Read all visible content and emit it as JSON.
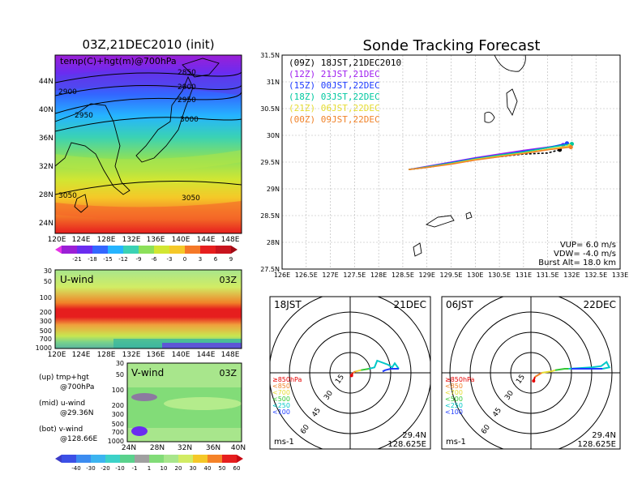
{
  "init_panel": {
    "title": "03Z,21DEC2010 (init)",
    "subtitle": "temp(C)+hgt(m)@700hPa",
    "lat_ticks": [
      "44N",
      "40N",
      "36N",
      "32N",
      "28N",
      "24N"
    ],
    "lon_ticks": [
      "120E",
      "124E",
      "128E",
      "132E",
      "136E",
      "140E",
      "144E",
      "148E"
    ],
    "contours": [
      "2850",
      "2900",
      "2900",
      "2950",
      "2950",
      "3000",
      "3050",
      "3050"
    ],
    "colorbar_ticks": [
      "-21",
      "-18",
      "-15",
      "-12",
      "-9",
      "-6",
      "-3",
      "0",
      "3",
      "6",
      "9"
    ]
  },
  "uwind_panel": {
    "label": "U-wind",
    "time": "03Z",
    "levels": [
      "30",
      "50",
      "100",
      "200",
      "300",
      "500",
      "700",
      "1000"
    ],
    "lon_ticks": [
      "120E",
      "124E",
      "128E",
      "132E",
      "136E",
      "140E",
      "144E",
      "148E"
    ]
  },
  "vwind_panel": {
    "label": "V-wind",
    "time": "03Z",
    "levels": [
      "30",
      "50",
      "100",
      "200",
      "300",
      "500",
      "700",
      "1000"
    ],
    "lat_ticks": [
      "24N",
      "28N",
      "32N",
      "36N",
      "40N"
    ]
  },
  "wind_colorbar_ticks": [
    "-40",
    "-30",
    "-20",
    "-10",
    "-1",
    "1",
    "10",
    "20",
    "30",
    "40",
    "50",
    "60"
  ],
  "legend_notes": [
    {
      "a": "(up) tmp+hgt",
      "b": "@700hPa"
    },
    {
      "a": "(mid) u-wind",
      "b": "@29.36N"
    },
    {
      "a": "(bot) v-wind",
      "b": "@128.66E"
    }
  ],
  "track_panel": {
    "title": "Sonde Tracking Forecast",
    "lat_ticks": [
      "31.5N",
      "31N",
      "30.5N",
      "30N",
      "29.5N",
      "29N",
      "28.5N",
      "28N",
      "27.5N"
    ],
    "lon_ticks": [
      "126E",
      "126.5E",
      "127E",
      "127.5E",
      "128E",
      "128.5E",
      "129E",
      "129.5E",
      "130E",
      "130.5E",
      "131E",
      "131.5E",
      "132E",
      "132.5E",
      "133E"
    ],
    "legend": [
      {
        "label": "(09Z) 18JST,21DEC2010",
        "color": "#000000"
      },
      {
        "label": "(12Z) 21JST,21DEC",
        "color": "#a020f0"
      },
      {
        "label": "(15Z) 00JST,22DEC",
        "color": "#1e3cff"
      },
      {
        "label": "(18Z) 03JST,22DEC",
        "color": "#00c8a0"
      },
      {
        "label": "(21Z) 06JST,22DEC",
        "color": "#e6dc32"
      },
      {
        "label": "(00Z) 09JST,22DEC",
        "color": "#f08228"
      }
    ],
    "params": [
      "VUP= 6.0 m/s",
      "VDW= -4.0 m/s",
      "Burst Alt= 18.0 km"
    ]
  },
  "hodo_left": {
    "time": "18JST",
    "date": "21DEC",
    "rings": [
      "15",
      "30",
      "45",
      "60"
    ],
    "levels": [
      {
        "label": "≥850hPa",
        "color": "#e60000"
      },
      {
        "label": "<850",
        "color": "#f08228"
      },
      {
        "label": "<700",
        "color": "#e6dc32"
      },
      {
        "label": "<500",
        "color": "#32c832"
      },
      {
        "label": "<250",
        "color": "#00c8c8"
      },
      {
        "label": "<100",
        "color": "#1e3cff"
      }
    ],
    "units": "ms-1",
    "lat": "29.4N",
    "lon": "128.625E"
  },
  "hodo_right": {
    "time": "06JST",
    "date": "22DEC",
    "rings": [
      "15",
      "30",
      "45",
      "60"
    ],
    "units": "ms-1",
    "lat": "29.4N",
    "lon": "128.625E"
  },
  "chart_data": [
    {
      "type": "line",
      "title": "Sonde Tracking Forecast",
      "xlabel": "",
      "ylabel": "",
      "xlim": [
        126,
        133
      ],
      "ylim": [
        27.5,
        31.5
      ],
      "series": [
        {
          "name": "(09Z) 18JST,21DEC2010",
          "x": [
            128.62,
            129.0,
            129.5,
            130.0,
            130.5,
            131.0,
            131.5,
            131.75
          ],
          "y": [
            29.36,
            29.4,
            29.47,
            29.55,
            29.6,
            29.65,
            29.67,
            29.73
          ]
        },
        {
          "name": "(12Z) 21JST,21DEC",
          "x": [
            128.62,
            129.0,
            129.5,
            130.0,
            130.5,
            131.0,
            131.5,
            131.82
          ],
          "y": [
            29.36,
            29.42,
            29.5,
            29.58,
            29.65,
            29.72,
            29.78,
            29.82
          ]
        },
        {
          "name": "(15Z) 00JST,22DEC",
          "x": [
            128.62,
            129.0,
            129.5,
            130.0,
            130.5,
            131.0,
            131.5,
            131.9
          ],
          "y": [
            29.36,
            29.41,
            29.49,
            29.57,
            29.63,
            29.7,
            29.77,
            29.85
          ]
        },
        {
          "name": "(18Z) 03JST,22DEC",
          "x": [
            128.62,
            129.0,
            129.5,
            130.0,
            130.5,
            131.0,
            131.5,
            132.0
          ],
          "y": [
            29.36,
            29.41,
            29.48,
            29.56,
            29.63,
            29.69,
            29.77,
            29.84
          ]
        },
        {
          "name": "(21Z) 06JST,22DEC",
          "x": [
            128.62,
            129.0,
            129.5,
            130.0,
            130.5,
            131.0,
            131.5,
            131.95
          ],
          "y": [
            29.36,
            29.4,
            29.47,
            29.55,
            29.61,
            29.67,
            29.74,
            29.8
          ]
        },
        {
          "name": "(00Z) 09JST,22DEC",
          "x": [
            128.62,
            129.0,
            129.5,
            130.0,
            130.5,
            131.0,
            131.5,
            131.98
          ],
          "y": [
            29.36,
            29.4,
            29.46,
            29.54,
            29.6,
            29.66,
            29.73,
            29.78
          ]
        }
      ]
    },
    {
      "type": "line",
      "title": "18JST 21DEC hodograph",
      "xlim": [
        -60,
        60
      ],
      "ylim": [
        -60,
        60
      ],
      "segments": [
        {
          "level": "≥850hPa",
          "color": "#e60000",
          "u": [
            1,
            2
          ],
          "v": [
            -2,
            0
          ]
        },
        {
          "level": "<850",
          "color": "#f08228",
          "u": [
            2,
            4
          ],
          "v": [
            0,
            1
          ]
        },
        {
          "level": "<700",
          "color": "#e6dc32",
          "u": [
            4,
            8
          ],
          "v": [
            1,
            2
          ]
        },
        {
          "level": "<500",
          "color": "#32c832",
          "u": [
            8,
            14
          ],
          "v": [
            2,
            3
          ]
        },
        {
          "level": "<250",
          "color": "#00c8c8",
          "u": [
            14,
            18,
            20,
            28,
            31,
            33,
            36
          ],
          "v": [
            3,
            4,
            9,
            6,
            4,
            7,
            3
          ]
        },
        {
          "level": "<100",
          "color": "#1e3cff",
          "u": [
            36,
            30,
            26,
            24
          ],
          "v": [
            3,
            3,
            2,
            1
          ]
        }
      ]
    },
    {
      "type": "line",
      "title": "06JST 22DEC hodograph",
      "xlim": [
        -60,
        60
      ],
      "ylim": [
        -60,
        60
      ],
      "segments": [
        {
          "level": "≥850hPa",
          "color": "#e60000",
          "u": [
            2,
            3
          ],
          "v": [
            -6,
            -3
          ]
        },
        {
          "level": "<850",
          "color": "#f08228",
          "u": [
            3,
            8
          ],
          "v": [
            -3,
            0
          ]
        },
        {
          "level": "<700",
          "color": "#e6dc32",
          "u": [
            8,
            15,
            18
          ],
          "v": [
            0,
            1,
            2
          ]
        },
        {
          "level": "<500",
          "color": "#32c832",
          "u": [
            18,
            25,
            28
          ],
          "v": [
            2,
            3,
            3
          ]
        },
        {
          "level": "<250",
          "color": "#00c8c8",
          "u": [
            28,
            45,
            52,
            56,
            58,
            53
          ],
          "v": [
            3,
            4,
            5,
            8,
            4,
            3
          ]
        },
        {
          "level": "<100",
          "color": "#1e3cff",
          "u": [
            53,
            40,
            30
          ],
          "v": [
            3,
            3,
            3
          ]
        }
      ]
    }
  ]
}
